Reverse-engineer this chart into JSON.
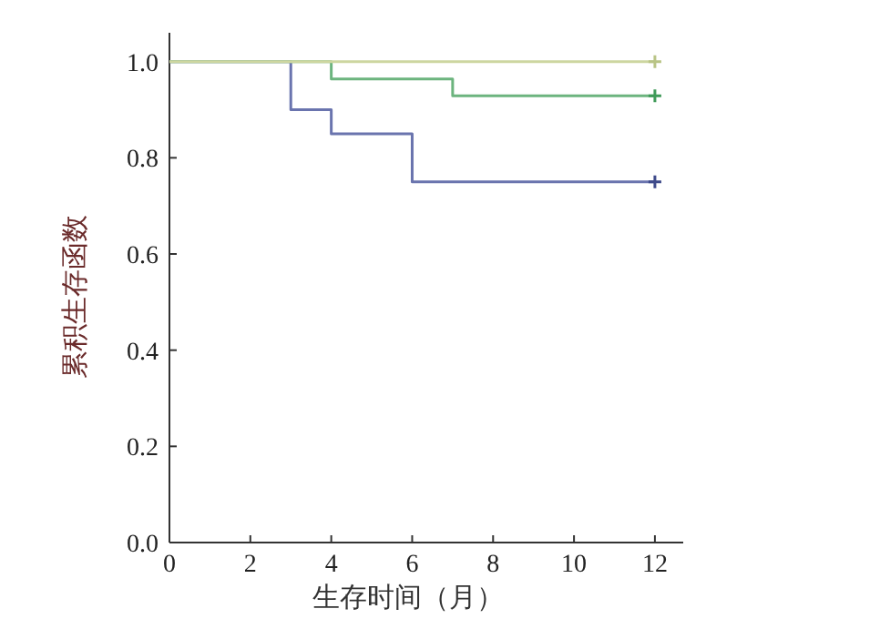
{
  "chart_data": {
    "type": "step",
    "xlabel": "生存时间（月）",
    "ylabel": "累积生存函数",
    "xlim": [
      0,
      12.7
    ],
    "ylim": [
      0,
      1.06
    ],
    "xticks": [
      0,
      2,
      4,
      6,
      8,
      10,
      12
    ],
    "yticks": [
      {
        "value": 0,
        "label": "0.0"
      },
      {
        "value": 0.2,
        "label": "0.2"
      },
      {
        "value": 0.4,
        "label": "0.4"
      },
      {
        "value": 0.6,
        "label": "0.6"
      },
      {
        "value": 0.8,
        "label": "0.8"
      },
      {
        "value": 1,
        "label": "1.0"
      }
    ],
    "series": [
      {
        "color": "#6a74ae",
        "x": [
          0,
          3,
          4,
          6,
          12
        ],
        "values": [
          1,
          0.9,
          0.85,
          0.75,
          0.75
        ]
      },
      {
        "color": "#6cb47e",
        "x": [
          0,
          4,
          7,
          12
        ],
        "values": [
          1,
          0.964,
          0.929,
          0.929
        ]
      },
      {
        "color": "#cdd6a0",
        "x": [
          0,
          12
        ],
        "values": [
          1,
          1
        ]
      },
      {
        "type": "scatter",
        "marker": "cross",
        "color": "#3e4a8a",
        "x": [
          12
        ],
        "values": [
          0.75
        ]
      },
      {
        "type": "scatter",
        "marker": "cross",
        "color": "#3f9a58",
        "x": [
          12
        ],
        "values": [
          0.929
        ]
      },
      {
        "type": "scatter",
        "marker": "cross",
        "color": "#b9c486",
        "x": [
          12
        ],
        "values": [
          1
        ]
      }
    ]
  }
}
